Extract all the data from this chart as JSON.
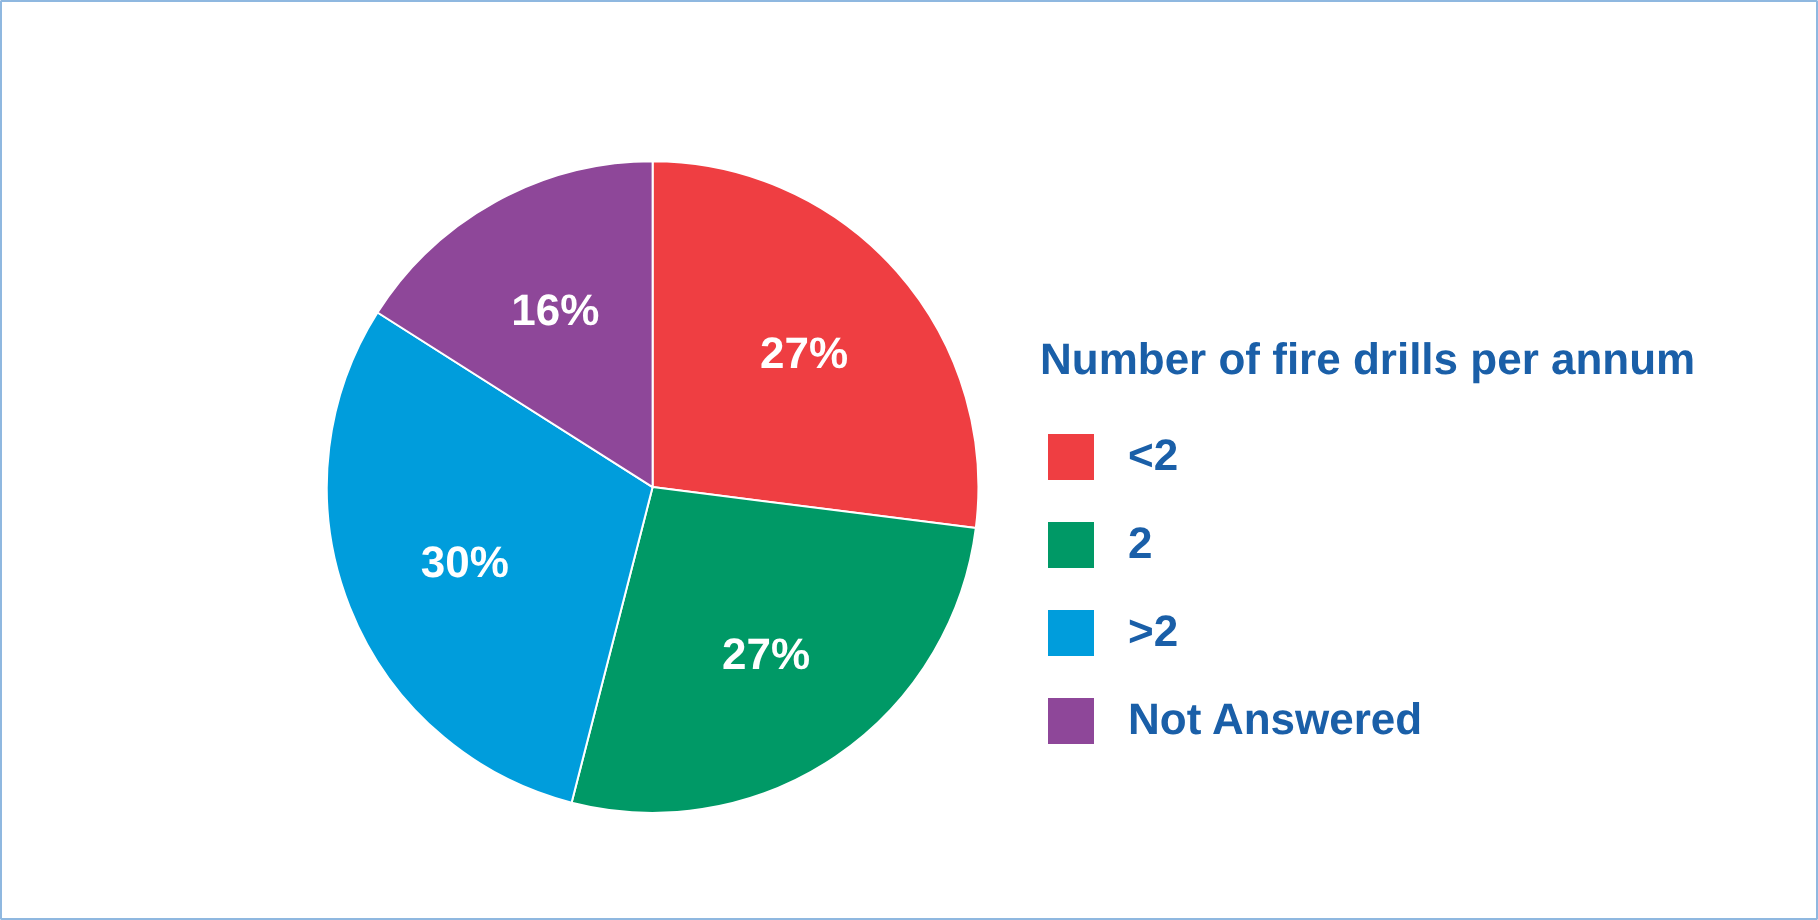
{
  "chart_data": {
    "type": "pie",
    "legend_title": "Number of fire drills per annum",
    "categories": [
      "<2",
      "2",
      ">2",
      "Not Answered"
    ],
    "values": [
      27,
      27,
      30,
      16
    ],
    "colors": [
      "#ef3e42",
      "#009966",
      "#009ddc",
      "#8e4799"
    ],
    "value_labels": [
      "27%",
      "27%",
      "30%",
      "16%"
    ],
    "legend": "right"
  }
}
